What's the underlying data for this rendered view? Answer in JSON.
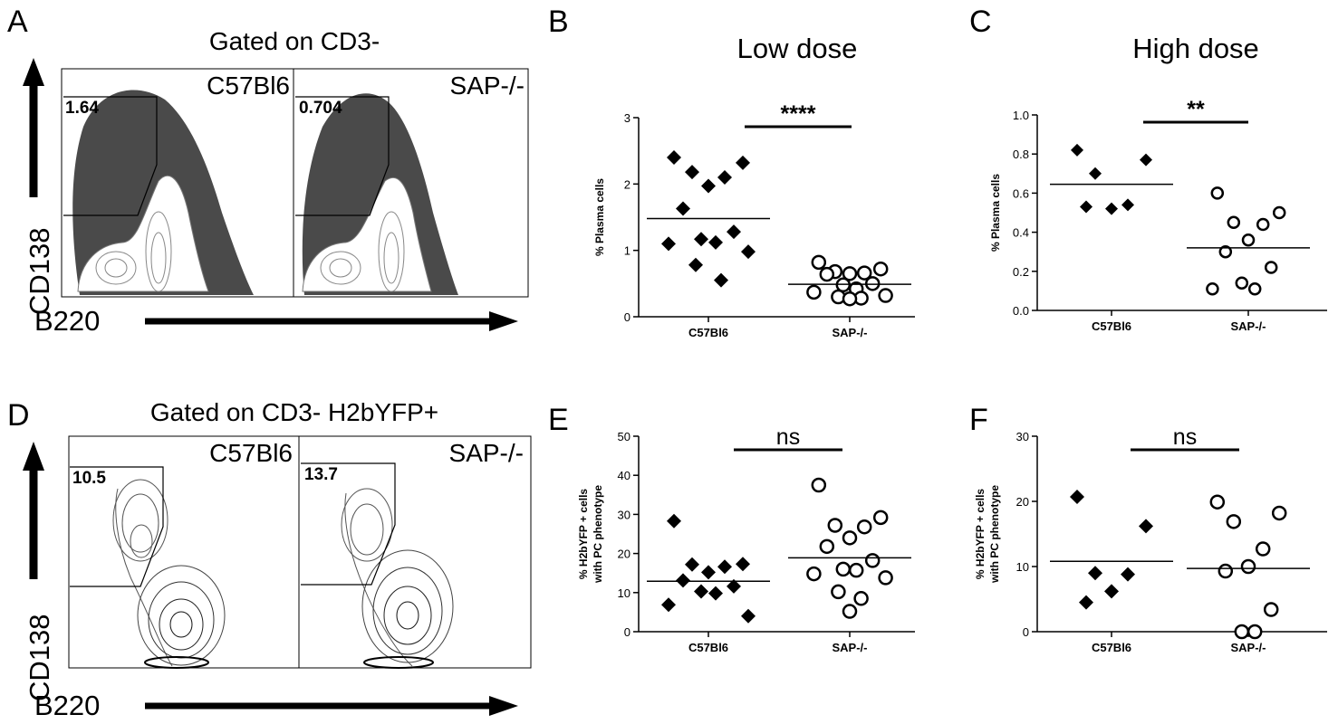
{
  "panels": {
    "A": {
      "letter": "A",
      "title": "Gated on CD3-",
      "y_axis": "CD138",
      "x_axis": "B220",
      "plots": [
        {
          "sample": "C57Bl6",
          "gate_value": "1.64"
        },
        {
          "sample": "SAP-/-",
          "gate_value": "0.704"
        }
      ]
    },
    "D": {
      "letter": "D",
      "title": "Gated on CD3- H2bYFP+",
      "y_axis": "CD138",
      "x_axis": "B220",
      "plots": [
        {
          "sample": "C57Bl6",
          "gate_value": "10.5"
        },
        {
          "sample": "SAP-/-",
          "gate_value": "13.7"
        }
      ]
    },
    "B": {
      "letter": "B"
    },
    "C": {
      "letter": "C"
    },
    "E": {
      "letter": "E"
    },
    "F": {
      "letter": "F"
    }
  },
  "chart_data": [
    {
      "panel": "B",
      "type": "scatter",
      "title": "Low dose",
      "ylabel": "% Plasma cells",
      "ylim": [
        0,
        3
      ],
      "yticks": [
        "0",
        "1",
        "2",
        "3"
      ],
      "categories": [
        "C57Bl6",
        "SAP-/-"
      ],
      "series": [
        {
          "category": "C57Bl6",
          "marker": "diamond",
          "values": [
            2.4,
            2.32,
            2.18,
            2.1,
            1.97,
            1.63,
            1.28,
            1.17,
            1.12,
            1.1,
            0.98,
            0.78,
            0.55
          ],
          "mean": 1.48
        },
        {
          "category": "SAP-/-",
          "marker": "open-circle",
          "values": [
            0.82,
            0.72,
            0.68,
            0.66,
            0.65,
            0.64,
            0.5,
            0.48,
            0.42,
            0.37,
            0.32,
            0.3,
            0.28,
            0.27
          ],
          "mean": 0.49
        }
      ],
      "significance": "****"
    },
    {
      "panel": "C",
      "type": "scatter",
      "title": "High dose",
      "ylabel": "% Plasma cells",
      "ylim": [
        0,
        1.0
      ],
      "yticks": [
        "0.0",
        "0.2",
        "0.4",
        "0.6",
        "0.8",
        "1.0"
      ],
      "categories": [
        "C57Bl6",
        "SAP-/-"
      ],
      "series": [
        {
          "category": "C57Bl6",
          "marker": "diamond",
          "values": [
            0.82,
            0.77,
            0.7,
            0.54,
            0.52,
            0.53
          ],
          "mean": 0.645
        },
        {
          "category": "SAP-/-",
          "marker": "open-circle",
          "values": [
            0.6,
            0.5,
            0.45,
            0.44,
            0.36,
            0.3,
            0.22,
            0.14,
            0.11,
            0.11
          ],
          "mean": 0.32
        }
      ],
      "significance": "**"
    },
    {
      "panel": "E",
      "type": "scatter",
      "ylabel": "% H2bYFP + cells with PC phenotype",
      "ylim": [
        0,
        50
      ],
      "yticks": [
        "0",
        "10",
        "20",
        "30",
        "40",
        "50"
      ],
      "categories": [
        "C57Bl6",
        "SAP-/-"
      ],
      "series": [
        {
          "category": "C57Bl6",
          "marker": "diamond",
          "values": [
            28.3,
            17.3,
            17.2,
            16.6,
            15.2,
            13.1,
            11.6,
            10.3,
            9.8,
            6.9,
            4.0
          ],
          "mean": 12.9
        },
        {
          "category": "SAP-/-",
          "marker": "open-circle",
          "values": [
            37.5,
            29.2,
            27.2,
            26.8,
            24.0,
            21.8,
            18.2,
            16.0,
            15.7,
            14.8,
            13.8,
            10.2,
            8.5,
            5.2
          ],
          "mean": 18.9
        },
        {
          "category": "SAP-/-",
          "marker": "open-circle",
          "values": [],
          "mean": null
        }
      ],
      "significance": "ns"
    },
    {
      "panel": "F",
      "type": "scatter",
      "ylabel": "% H2bYFP + cells with PC phenotype",
      "ylim": [
        0,
        30
      ],
      "yticks": [
        "0",
        "10",
        "20",
        "30"
      ],
      "categories": [
        "C57Bl6",
        "SAP-/-"
      ],
      "series": [
        {
          "category": "C57Bl6",
          "marker": "diamond",
          "values": [
            20.7,
            16.2,
            9.0,
            8.8,
            6.2,
            4.5
          ],
          "mean": 10.8
        },
        {
          "category": "SAP-/-",
          "marker": "open-circle",
          "values": [
            19.9,
            18.2,
            16.9,
            12.7,
            10.0,
            9.3,
            3.4,
            0.0,
            0.0
          ],
          "mean": 9.7
        }
      ],
      "significance": "ns"
    }
  ]
}
